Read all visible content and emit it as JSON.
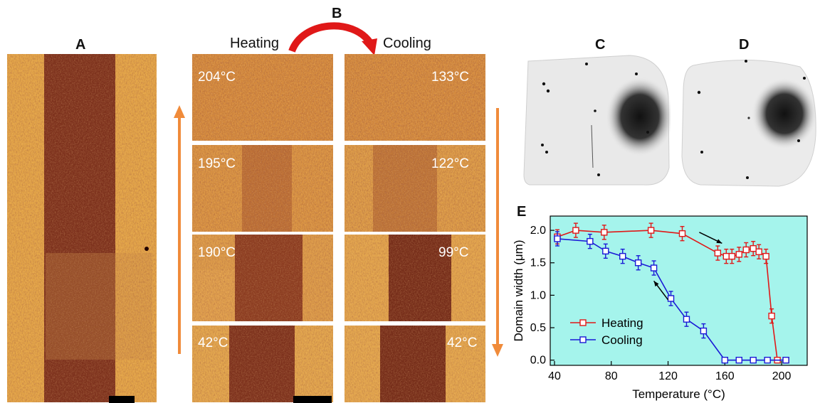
{
  "panels": {
    "A": "A",
    "B": "B",
    "C": "C",
    "D": "D",
    "E": "E"
  },
  "headers": {
    "heating": "Heating",
    "cooling": "Cooling"
  },
  "heating_tiles": [
    "204°C",
    "195°C",
    "190°C",
    "42°C"
  ],
  "cooling_tiles": [
    "133°C",
    "122°C",
    "99°C",
    "42°C"
  ],
  "colors": {
    "bright": "#e6a94a",
    "dark": "#7a2f1a",
    "arrow_orange": "#f08b3a",
    "arrow_red": "#e01818",
    "plot_bg": "#a5f4ec",
    "heating": "#e01818",
    "cooling": "#1a1ad6"
  },
  "chart_data": {
    "type": "line",
    "xlabel": "Temperature (°C)",
    "ylabel": "Domain width (μm)",
    "xlim": [
      37,
      218
    ],
    "ylim": [
      -0.08,
      2.22
    ],
    "xticks": [
      40,
      80,
      120,
      160,
      200
    ],
    "yticks": [
      0.0,
      0.5,
      1.0,
      1.5,
      2.0
    ],
    "ytick_labels": [
      "0.0",
      "0.5",
      "1.0",
      "1.5",
      "2.0"
    ],
    "legend": "bottom-left",
    "series": [
      {
        "name": "Heating",
        "color": "#e01818",
        "x": [
          42,
          55,
          75,
          108,
          130,
          155,
          161,
          165,
          170,
          175,
          180,
          184,
          189,
          193,
          197,
          203
        ],
        "y": [
          1.9,
          2.0,
          1.97,
          2.0,
          1.95,
          1.65,
          1.6,
          1.6,
          1.63,
          1.7,
          1.72,
          1.67,
          1.6,
          0.68,
          0.0,
          0.0
        ]
      },
      {
        "name": "Cooling",
        "color": "#1a1ad6",
        "x": [
          42,
          65,
          76,
          88,
          99,
          110,
          122,
          133,
          145,
          160,
          170,
          180,
          190,
          203
        ],
        "y": [
          1.87,
          1.83,
          1.68,
          1.6,
          1.5,
          1.42,
          0.95,
          0.63,
          0.45,
          0.0,
          0.0,
          0.0,
          0.0,
          0.0
        ]
      }
    ]
  }
}
